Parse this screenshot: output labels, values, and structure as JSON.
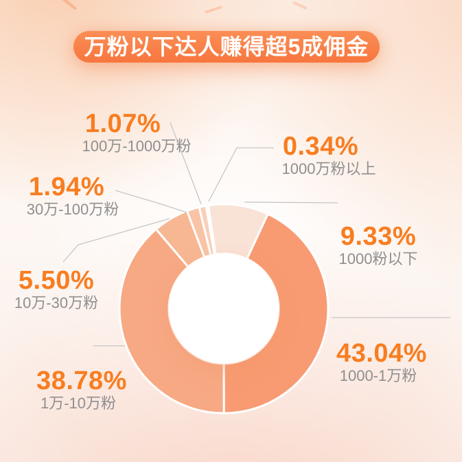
{
  "title": {
    "text": "万粉以下达人赚得超5成佣金"
  },
  "colors": {
    "percent_text": "#F87D20",
    "sublabel_text": "#8F8F8F",
    "connector_line": "#C6C6C6",
    "pill_top": "#FA8E55",
    "pill_bottom": "#F7763E",
    "hole": "#FFFFFF"
  },
  "chart_data": {
    "type": "pie",
    "subtype": "donut",
    "title": "万粉以下达人赚得超5成佣金",
    "unit": "%",
    "start_angle_deg": -8.6,
    "legend_position": "callout-labels",
    "segments": [
      {
        "id": "under-1k",
        "label": "1000粉以下",
        "value": 9.33,
        "display": "9.33%",
        "color": "#F9E2D6"
      },
      {
        "id": "1k-10k",
        "label": "1000-1万粉",
        "value": 43.04,
        "display": "43.04%",
        "color": "#F89B72"
      },
      {
        "id": "10k-100k",
        "label": "1万-10万粉",
        "value": 38.78,
        "display": "38.78%",
        "color": "#F7A984"
      },
      {
        "id": "100k-300k",
        "label": "10万-30万粉",
        "value": 5.5,
        "display": "5.50%",
        "color": "#F7B793"
      },
      {
        "id": "300k-1m",
        "label": "30万-100万粉",
        "value": 1.94,
        "display": "1.94%",
        "color": "#F8C4A5"
      },
      {
        "id": "1m-10m",
        "label": "100万-1000万粉",
        "value": 1.07,
        "display": "1.07%",
        "color": "#F9CFB6"
      },
      {
        "id": "over-10m",
        "label": "1000万粉以上",
        "value": 0.34,
        "display": "0.34%",
        "color": "#FADAC8"
      }
    ]
  }
}
